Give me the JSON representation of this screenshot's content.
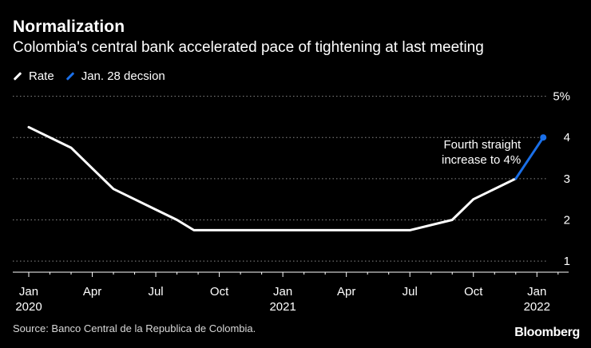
{
  "chart_data": {
    "type": "line",
    "title": "Normalization",
    "subtitle": "Colombia's central bank accelerated pace of tightening at last meeting",
    "legend": [
      {
        "label": "Rate",
        "color": "#ffffff"
      },
      {
        "label": "Jan. 28 decsion",
        "color": "#1a6fe8"
      }
    ],
    "y_ticks": [
      {
        "value": 5,
        "label": "5%"
      },
      {
        "value": 4,
        "label": "4"
      },
      {
        "value": 3,
        "label": "3"
      },
      {
        "value": 2,
        "label": "2"
      },
      {
        "value": 1,
        "label": "1"
      }
    ],
    "ylim": [
      0.75,
      5.05
    ],
    "xlim": [
      0,
      25.8
    ],
    "x_ticks": [
      {
        "value": 0,
        "label": "Jan",
        "year": "2020"
      },
      {
        "value": 3,
        "label": "Apr",
        "year": ""
      },
      {
        "value": 6,
        "label": "Jul",
        "year": ""
      },
      {
        "value": 9,
        "label": "Oct",
        "year": ""
      },
      {
        "value": 12,
        "label": "Jan",
        "year": "2021"
      },
      {
        "value": 15,
        "label": "Apr",
        "year": ""
      },
      {
        "value": 18,
        "label": "Jul",
        "year": ""
      },
      {
        "value": 21,
        "label": "Oct",
        "year": ""
      },
      {
        "value": 24,
        "label": "Jan",
        "year": "2022"
      }
    ],
    "series": [
      {
        "name": "Rate",
        "color": "#ffffff",
        "points": [
          [
            0,
            4.25
          ],
          [
            2,
            3.75
          ],
          [
            3,
            3.25
          ],
          [
            4,
            2.75
          ],
          [
            5,
            2.5
          ],
          [
            6,
            2.25
          ],
          [
            7,
            2.0
          ],
          [
            7.8,
            1.75
          ],
          [
            18,
            1.75
          ],
          [
            20,
            2.0
          ],
          [
            21,
            2.5
          ],
          [
            23,
            3.0
          ]
        ]
      },
      {
        "name": "Jan. 28 decsion",
        "color": "#1a6fe8",
        "points": [
          [
            23,
            3.0
          ],
          [
            24.3,
            4.0
          ]
        ]
      }
    ],
    "annotation": {
      "line1": "Fourth straight",
      "line2": "increase to 4%",
      "x": 24.3,
      "y": 4.0
    }
  },
  "footer": {
    "source": "Source: Banco Central de la Republica de Colombia.",
    "brand": "Bloomberg"
  }
}
